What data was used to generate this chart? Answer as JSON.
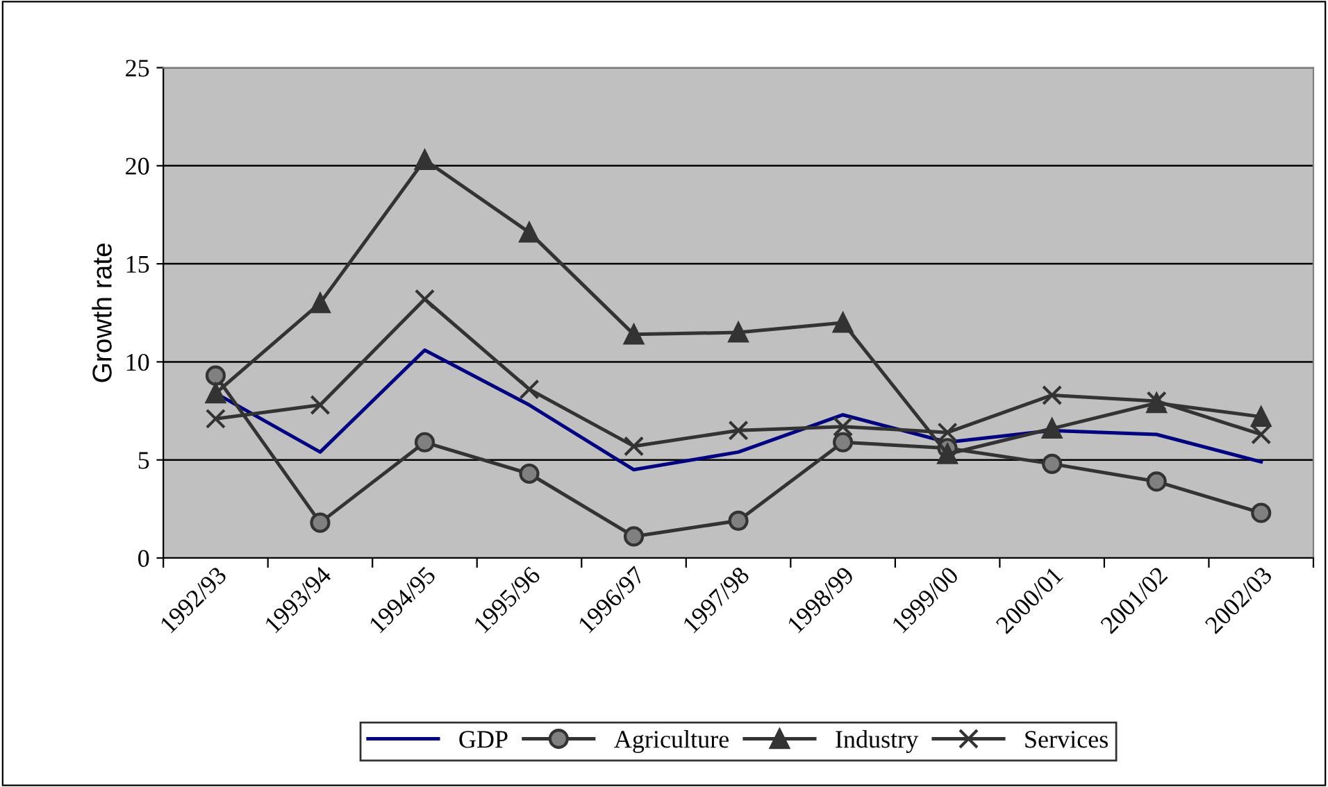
{
  "chart_data": {
    "type": "line",
    "ylabel": "Growth rate",
    "categories": [
      "1992/93",
      "1993/94",
      "1994/95",
      "1995/96",
      "1996/97",
      "1997/98",
      "1998/99",
      "1999/00",
      "2000/01",
      "2001/02",
      "2002/03"
    ],
    "series": [
      {
        "name": "GDP",
        "color": "#000080",
        "marker": "none",
        "values": [
          8.4,
          5.4,
          10.6,
          7.8,
          4.5,
          5.4,
          7.3,
          5.9,
          6.5,
          6.3,
          4.9
        ]
      },
      {
        "name": "Agriculture",
        "color": "#333333",
        "marker": "circle",
        "values": [
          9.3,
          1.8,
          5.9,
          4.3,
          1.1,
          1.9,
          5.9,
          5.6,
          4.8,
          3.9,
          2.3
        ]
      },
      {
        "name": "Industry",
        "color": "#333333",
        "marker": "triangle",
        "values": [
          8.4,
          13.0,
          20.3,
          16.6,
          11.4,
          11.5,
          12.0,
          5.3,
          6.6,
          7.9,
          7.2
        ]
      },
      {
        "name": "Services",
        "color": "#333333",
        "marker": "cross",
        "values": [
          7.1,
          7.8,
          13.2,
          8.6,
          5.7,
          6.5,
          6.7,
          6.4,
          8.3,
          8.0,
          6.3
        ]
      }
    ],
    "ylim": [
      0,
      25
    ],
    "yticks": [
      0,
      5,
      10,
      15,
      20,
      25
    ],
    "grid": "y",
    "legend": "bottom"
  }
}
